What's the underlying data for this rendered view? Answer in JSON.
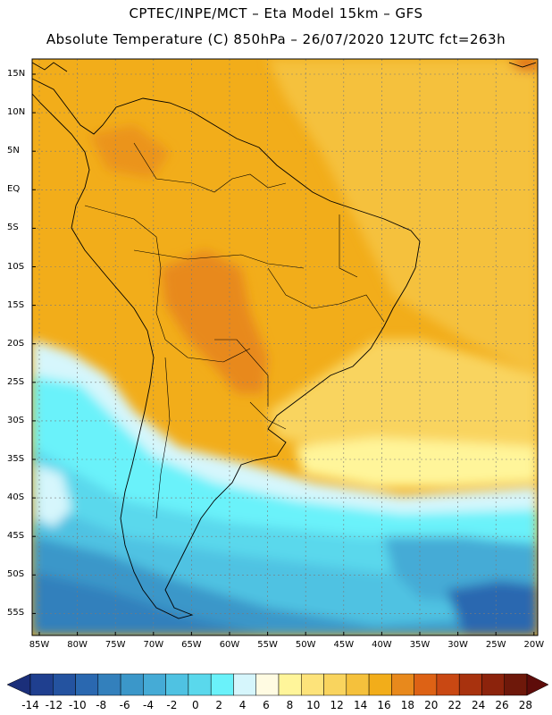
{
  "header": {
    "line1": "CPTEC/INPE/MCT –  Eta Model 15km – GFS",
    "line2": "Absolute Temperature (C) 850hPa – 26/07/2020 12UTC fct=263h"
  },
  "map": {
    "lat_labels": [
      "15N",
      "10N",
      "5N",
      "EQ",
      "5S",
      "10S",
      "15S",
      "20S",
      "25S",
      "30S",
      "35S",
      "40S",
      "45S",
      "50S",
      "55S"
    ],
    "lon_labels": [
      "85W",
      "80W",
      "75W",
      "70W",
      "65W",
      "60W",
      "55W",
      "50W",
      "45W",
      "40W",
      "35W",
      "30W",
      "25W",
      "20W"
    ]
  },
  "colorbar": {
    "labels": [
      "-14",
      "-12",
      "-10",
      "-8",
      "-6",
      "-4",
      "-2",
      "0",
      "2",
      "4",
      "6",
      "8",
      "10",
      "12",
      "14",
      "16",
      "18",
      "20",
      "22",
      "24",
      "26",
      "28"
    ],
    "colors": [
      "#1f3f8f",
      "#2453a0",
      "#2a68b0",
      "#3380bc",
      "#3b97c9",
      "#45abd6",
      "#4fc2e2",
      "#5ad8ec",
      "#6af2fa",
      "#d6f6fc",
      "#fffbe2",
      "#fff59a",
      "#fde37a",
      "#f9d45e",
      "#f5c13c",
      "#f2ad1a",
      "#e8891c",
      "#dd6215",
      "#c94813",
      "#a8320e",
      "#8c230c",
      "#6e180a"
    ],
    "left_color": "#1b2f7a",
    "right_color": "#5e0c0a"
  }
}
